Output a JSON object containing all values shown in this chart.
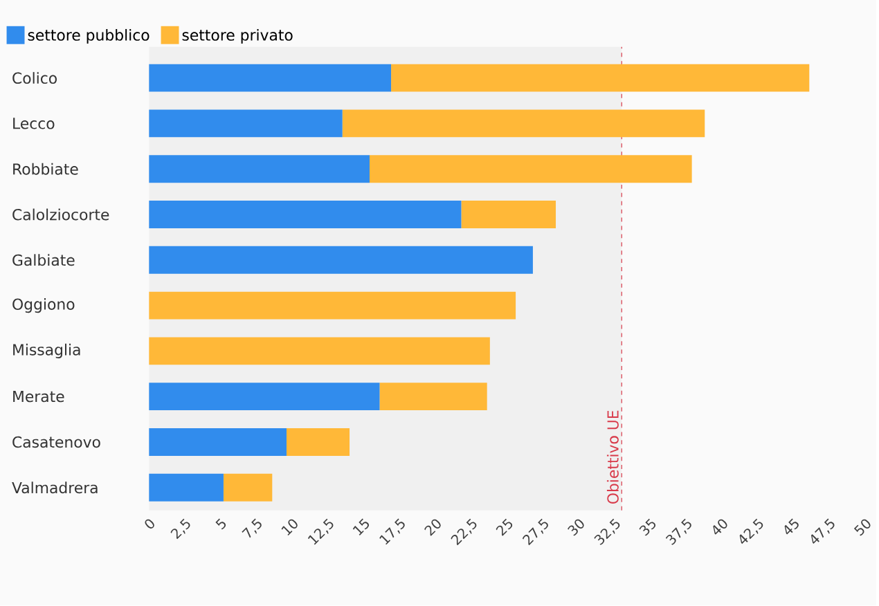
{
  "chart_data": {
    "type": "bar",
    "orientation": "horizontal",
    "stacked": true,
    "categories": [
      "Colico",
      "Lecco",
      "Robbiate",
      "Calolziocorte",
      "Galbiate",
      "Oggiono",
      "Missaglia",
      "Merate",
      "Casatenovo",
      "Valmadrera"
    ],
    "series": [
      {
        "name": "settore pubblico",
        "color": "#318ced",
        "values": [
          16.9,
          13.5,
          15.4,
          21.8,
          26.8,
          0,
          0,
          16.1,
          9.6,
          5.2
        ]
      },
      {
        "name": "settore privato",
        "color": "#ffb838",
        "values": [
          29.2,
          25.3,
          22.5,
          6.6,
          0,
          25.6,
          23.8,
          7.5,
          4.4,
          3.4
        ]
      }
    ],
    "xlim": [
      0,
      50
    ],
    "xticks": [
      0,
      {
        "value": 2.5,
        "label": "2,5"
      },
      5,
      {
        "value": 7.5,
        "label": "7,5"
      },
      10,
      {
        "value": 12.5,
        "label": "12,5"
      },
      15,
      {
        "value": 17.5,
        "label": "17,5"
      },
      20,
      {
        "value": 22.5,
        "label": "22,5"
      },
      25,
      {
        "value": 27.5,
        "label": "27,5"
      },
      30,
      {
        "value": 32.5,
        "label": "32,5"
      },
      35,
      {
        "value": 37.5,
        "label": "37,5"
      },
      40,
      {
        "value": 42.5,
        "label": "42,5"
      },
      45,
      {
        "value": 47.5,
        "label": "47,5"
      },
      50
    ],
    "ref_lines": [
      {
        "axis": "x",
        "value": 33,
        "label": "Obiettivo UE",
        "color": "#d83a4a",
        "line_style": "dashed"
      }
    ],
    "bands": [
      {
        "axis": "x",
        "from": 0,
        "to": 33,
        "color": "#f0f0f0"
      }
    ],
    "grid": false,
    "legend": "top left"
  }
}
